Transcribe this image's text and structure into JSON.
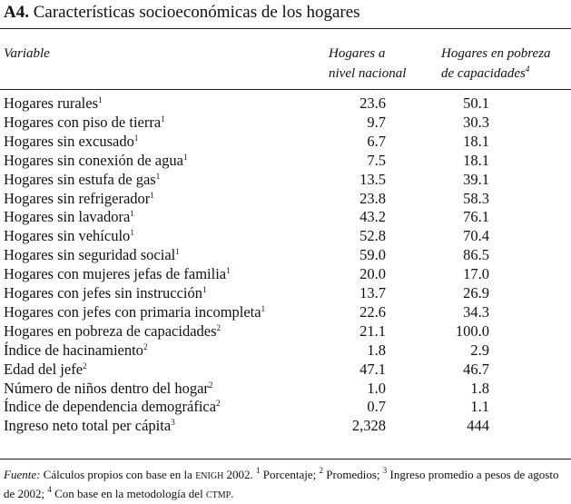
{
  "title": {
    "label": "A4.",
    "text": "Características socioeconómicas de los hogares"
  },
  "table": {
    "header": {
      "variable": "Variable",
      "col1": [
        "Hogares a",
        "nivel nacional"
      ],
      "col2": [
        "Hogares en pobreza",
        "de capacidades"
      ],
      "col2_note": "4"
    },
    "rows": [
      [
        "Hogares rurales",
        "1",
        "23.6",
        "50.1"
      ],
      [
        "Hogares con piso de tierra",
        "1",
        "9.7",
        "30.3"
      ],
      [
        "Hogares sin excusado",
        "1",
        "6.7",
        "18.1"
      ],
      [
        "Hogares sin conexión de agua",
        "1",
        "7.5",
        "18.1"
      ],
      [
        "Hogares sin estufa de gas",
        "1",
        "13.5",
        "39.1"
      ],
      [
        "Hogares sin refrigerador",
        "1",
        "23.8",
        "58.3"
      ],
      [
        "Hogares sin lavadora",
        "1",
        "43.2",
        "76.1"
      ],
      [
        "Hogares sin vehículo",
        "1",
        "52.8",
        "70.4"
      ],
      [
        "Hogares sin seguridad social",
        "1",
        "59.0",
        "86.5"
      ],
      [
        "Hogares con mujeres jefas de familia",
        "1",
        "20.0",
        "17.0"
      ],
      [
        "Hogares con jefes sin instrucción",
        "1",
        "13.7",
        "26.9"
      ],
      [
        "Hogares con jefes con primaria incompleta",
        "1",
        "22.6",
        "34.3"
      ],
      [
        "Hogares en pobreza de capacidades",
        "2",
        "21.1",
        "100.0"
      ],
      [
        "Índice de hacinamiento",
        "2",
        "1.8",
        "2.9"
      ],
      [
        "Edad del jefe",
        "2",
        "47.1",
        "46.7"
      ],
      [
        "Número de niños dentro del hogar",
        "2",
        "1.0",
        "1.8"
      ],
      [
        "Índice de dependencia demográfica",
        "2",
        "0.7",
        "1.1"
      ],
      [
        "Ingreso neto total per cápita",
        "3",
        "2,328",
        "444"
      ]
    ]
  },
  "footnote": {
    "source_label": "Fuente:",
    "source_text": "Cálculos propios con base en la",
    "source_acronym": "ENIGH",
    "source_year": "2002.",
    "notes": [
      {
        "mark": "1",
        "text": "Porcentaje;"
      },
      {
        "mark": "2",
        "text": "Promedios;"
      },
      {
        "mark": "3",
        "text": "Ingreso promedio a pesos de agosto de 2002;"
      },
      {
        "mark": "4",
        "text": "Con base en la metodología del",
        "acronym": "CTMP",
        "end": "."
      }
    ]
  }
}
